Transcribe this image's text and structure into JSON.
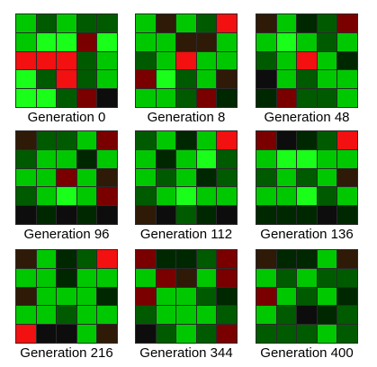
{
  "palette": {
    "g": "#00c800",
    "G": "#19ff19",
    "d": "#005a00",
    "D": "#002800",
    "r": "#7a0000",
    "R": "#f21010",
    "k": "#0d0d0d",
    "m": "#2f1a08"
  },
  "panels": [
    {
      "caption": "Generation 0",
      "rows": [
        "gdgdd",
        "gGGrG",
        "RRRdg",
        "GdRdg",
        "GGdrk"
      ]
    },
    {
      "caption": "Generation 8",
      "rows": [
        "gmgdR",
        "ggmmg",
        "dgRgg",
        "rGdgm",
        "ggdrD"
      ]
    },
    {
      "caption": "Generation 48",
      "rows": [
        "mgDdr",
        "gGgdg",
        "dgRgD",
        "kgdgg",
        "Drddg"
      ]
    },
    {
      "caption": "Generation 96",
      "rows": [
        "mddgr",
        "dggDg",
        "ggrgm",
        "dgGgr",
        "kDkDk"
      ]
    },
    {
      "caption": "Generation 112",
      "rows": [
        "dgDgR",
        "gDgGd",
        "gdgDd",
        "dgGgg",
        "mkdDk"
      ]
    },
    {
      "caption": "Generation 136",
      "rows": [
        "rkDdR",
        "gGGgg",
        "dgdgm",
        "ggGdg",
        "DDDkD"
      ]
    },
    {
      "caption": "Generation 216",
      "rows": [
        "mgDdR",
        "ggDgg",
        "mgggD",
        "ggdgg",
        "Rkkgm"
      ]
    },
    {
      "caption": "Generation 344",
      "rows": [
        "rDDdr",
        "grmgr",
        "rggdD",
        "dgggd",
        "kdgdr"
      ]
    },
    {
      "caption": "Generation 400",
      "rows": [
        "mDDgm",
        "gdgdd",
        "rgdgD",
        "gdkDd",
        "dddgd"
      ]
    }
  ]
}
